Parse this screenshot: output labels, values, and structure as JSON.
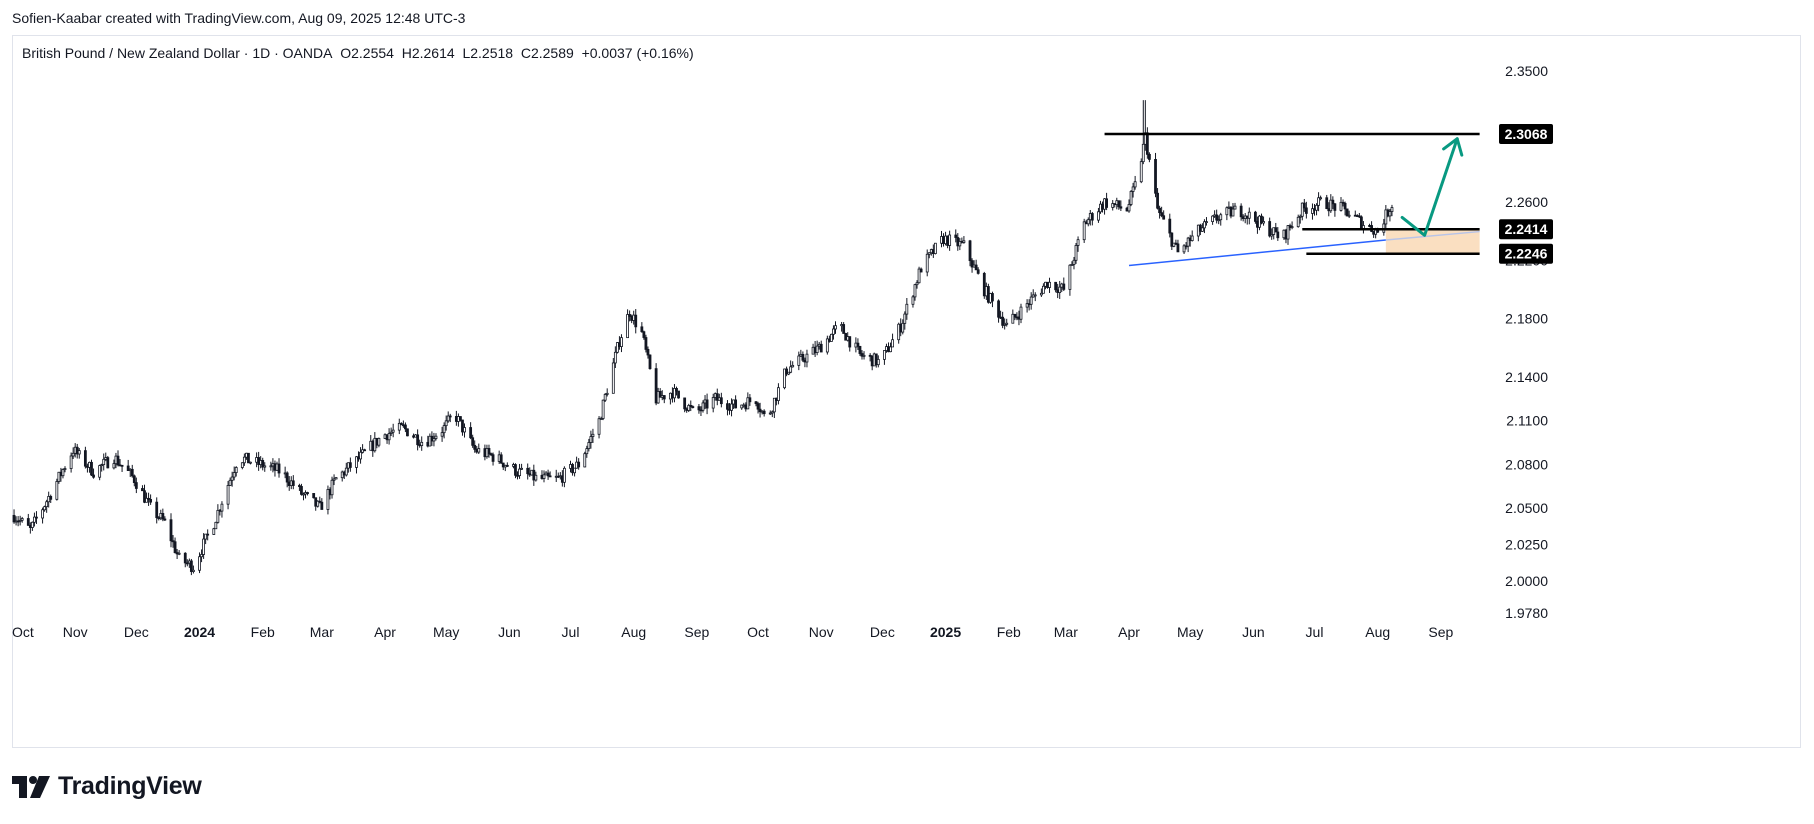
{
  "attribution": "Sofien-Kaabar created with TradingView.com, Aug 09, 2025 12:48 UTC-3",
  "header": {
    "symbol": "British Pound / New Zealand Dollar · 1D · OANDA",
    "open": "O2.2554",
    "high": "H2.2614",
    "low": "L2.2518",
    "close": "C2.2589",
    "change": "+0.0037 (+0.16%)"
  },
  "brand": {
    "name": "TradingView",
    "icon": "tradingview-logo-icon"
  },
  "colors": {
    "candle": "#131722",
    "trendline": "#2962ff",
    "arrow": "#089981",
    "zone": "#f9d9b6",
    "label_bg": "#000000"
  },
  "chart_data": {
    "type": "candlestick",
    "symbol": "GBPNZD",
    "timeframe": "1D",
    "x_range": [
      "2023-10-01",
      "2025-09-30"
    ],
    "ylim": [
      1.978,
      2.3614
    ],
    "y_ticks": [
      {
        "value": 2.35,
        "label": "2.3500"
      },
      {
        "value": 2.305,
        "label": "2.3050"
      },
      {
        "value": 2.26,
        "label": "2.2600"
      },
      {
        "value": 2.22,
        "label": "2.2200"
      },
      {
        "value": 2.18,
        "label": "2.1800"
      },
      {
        "value": 2.14,
        "label": "2.1400"
      },
      {
        "value": 2.11,
        "label": "2.1100"
      },
      {
        "value": 2.08,
        "label": "2.0800"
      },
      {
        "value": 2.05,
        "label": "2.0500"
      },
      {
        "value": 2.025,
        "label": "2.0250"
      },
      {
        "value": 2.0,
        "label": "2.0000"
      },
      {
        "value": 1.978,
        "label": "1.9780"
      }
    ],
    "x_ticks": [
      {
        "date": "2023-10-01",
        "label": "Oct",
        "bold": false
      },
      {
        "date": "2023-11-01",
        "label": "Nov",
        "bold": false
      },
      {
        "date": "2023-12-01",
        "label": "Dec",
        "bold": false
      },
      {
        "date": "2024-01-01",
        "label": "2024",
        "bold": true
      },
      {
        "date": "2024-02-01",
        "label": "Feb",
        "bold": false
      },
      {
        "date": "2024-03-01",
        "label": "Mar",
        "bold": false
      },
      {
        "date": "2024-04-01",
        "label": "Apr",
        "bold": false
      },
      {
        "date": "2024-05-01",
        "label": "May",
        "bold": false
      },
      {
        "date": "2024-06-01",
        "label": "Jun",
        "bold": false
      },
      {
        "date": "2024-07-01",
        "label": "Jul",
        "bold": false
      },
      {
        "date": "2024-08-01",
        "label": "Aug",
        "bold": false
      },
      {
        "date": "2024-09-01",
        "label": "Sep",
        "bold": false
      },
      {
        "date": "2024-10-01",
        "label": "Oct",
        "bold": false
      },
      {
        "date": "2024-11-01",
        "label": "Nov",
        "bold": false
      },
      {
        "date": "2024-12-01",
        "label": "Dec",
        "bold": false
      },
      {
        "date": "2025-01-01",
        "label": "2025",
        "bold": true
      },
      {
        "date": "2025-02-01",
        "label": "Feb",
        "bold": false
      },
      {
        "date": "2025-03-01",
        "label": "Mar",
        "bold": false
      },
      {
        "date": "2025-04-01",
        "label": "Apr",
        "bold": false
      },
      {
        "date": "2025-05-01",
        "label": "May",
        "bold": false
      },
      {
        "date": "2025-06-01",
        "label": "Jun",
        "bold": false
      },
      {
        "date": "2025-07-01",
        "label": "Jul",
        "bold": false
      },
      {
        "date": "2025-08-01",
        "label": "Aug",
        "bold": false
      },
      {
        "date": "2025-09-01",
        "label": "Sep",
        "bold": false
      }
    ],
    "close_path": [
      [
        "2023-10-02",
        2.045
      ],
      [
        "2023-10-10",
        2.035
      ],
      [
        "2023-10-20",
        2.06
      ],
      [
        "2023-10-31",
        2.09
      ],
      [
        "2023-11-10",
        2.075
      ],
      [
        "2023-11-20",
        2.085
      ],
      [
        "2023-11-30",
        2.07
      ],
      [
        "2023-12-08",
        2.05
      ],
      [
        "2023-12-15",
        2.04
      ],
      [
        "2023-12-22",
        2.015
      ],
      [
        "2023-12-29",
        2.01
      ],
      [
        "2024-01-08",
        2.04
      ],
      [
        "2024-01-20",
        2.085
      ],
      [
        "2024-01-31",
        2.08
      ],
      [
        "2024-02-10",
        2.075
      ],
      [
        "2024-02-20",
        2.06
      ],
      [
        "2024-02-29",
        2.05
      ],
      [
        "2024-03-08",
        2.07
      ],
      [
        "2024-03-20",
        2.085
      ],
      [
        "2024-03-31",
        2.1
      ],
      [
        "2024-04-10",
        2.105
      ],
      [
        "2024-04-20",
        2.095
      ],
      [
        "2024-04-30",
        2.105
      ],
      [
        "2024-05-05",
        2.115
      ],
      [
        "2024-05-15",
        2.09
      ],
      [
        "2024-05-25",
        2.085
      ],
      [
        "2024-06-05",
        2.075
      ],
      [
        "2024-06-15",
        2.07
      ],
      [
        "2024-06-25",
        2.07
      ],
      [
        "2024-07-05",
        2.08
      ],
      [
        "2024-07-15",
        2.11
      ],
      [
        "2024-07-25",
        2.165
      ],
      [
        "2024-07-30",
        2.185
      ],
      [
        "2024-08-05",
        2.17
      ],
      [
        "2024-08-12",
        2.125
      ],
      [
        "2024-08-20",
        2.13
      ],
      [
        "2024-08-31",
        2.115
      ],
      [
        "2024-09-10",
        2.125
      ],
      [
        "2024-09-20",
        2.12
      ],
      [
        "2024-09-30",
        2.125
      ],
      [
        "2024-10-05",
        2.11
      ],
      [
        "2024-10-15",
        2.145
      ],
      [
        "2024-10-31",
        2.16
      ],
      [
        "2024-11-10",
        2.175
      ],
      [
        "2024-11-20",
        2.155
      ],
      [
        "2024-11-30",
        2.15
      ],
      [
        "2024-12-10",
        2.175
      ],
      [
        "2024-12-20",
        2.215
      ],
      [
        "2024-12-31",
        2.235
      ],
      [
        "2025-01-10",
        2.23
      ],
      [
        "2025-01-20",
        2.2
      ],
      [
        "2025-01-31",
        2.175
      ],
      [
        "2025-02-10",
        2.19
      ],
      [
        "2025-02-20",
        2.205
      ],
      [
        "2025-02-28",
        2.2
      ],
      [
        "2025-03-10",
        2.245
      ],
      [
        "2025-03-20",
        2.26
      ],
      [
        "2025-03-31",
        2.255
      ],
      [
        "2025-04-05",
        2.275
      ],
      [
        "2025-04-09",
        2.305
      ],
      [
        "2025-04-15",
        2.255
      ],
      [
        "2025-04-25",
        2.225
      ],
      [
        "2025-05-05",
        2.24
      ],
      [
        "2025-05-15",
        2.25
      ],
      [
        "2025-05-25",
        2.255
      ],
      [
        "2025-06-05",
        2.245
      ],
      [
        "2025-06-15",
        2.235
      ],
      [
        "2025-06-25",
        2.255
      ],
      [
        "2025-07-05",
        2.26
      ],
      [
        "2025-07-15",
        2.255
      ],
      [
        "2025-07-25",
        2.245
      ],
      [
        "2025-08-01",
        2.24
      ],
      [
        "2025-08-08",
        2.2589
      ]
    ],
    "annotations": {
      "horizontal_lines": [
        {
          "price": 2.3068,
          "label": "2.3068",
          "from": "2025-03-20",
          "to": "2025-09-20"
        },
        {
          "price": 2.2414,
          "label": "2.2414",
          "from": "2025-06-25",
          "to": "2025-09-20"
        },
        {
          "price": 2.2246,
          "label": "2.2246",
          "from": "2025-06-27",
          "to": "2025-09-20"
        }
      ],
      "trendline": {
        "from": [
          "2025-04-01",
          2.2165
        ],
        "to": [
          "2025-08-05",
          2.234
        ]
      },
      "trendline_projection": {
        "from": [
          "2025-08-05",
          2.234
        ],
        "to": [
          "2025-09-20",
          2.2398
        ]
      },
      "zone": {
        "from": "2025-08-05",
        "to": "2025-09-20",
        "top": 2.2414,
        "bottom": 2.2246
      },
      "projection_arrow": [
        [
          "2025-08-13",
          2.2495
        ],
        [
          "2025-08-24",
          2.2372
        ],
        [
          "2025-09-09",
          2.3035
        ]
      ]
    }
  }
}
